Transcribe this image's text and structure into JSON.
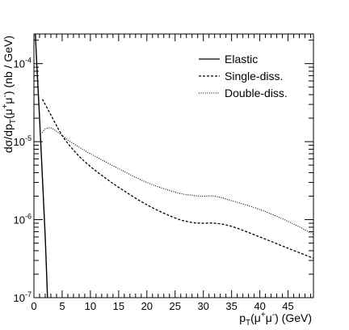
{
  "chart_data": {
    "type": "line",
    "title": "",
    "xlabel": "p_T(μ⁺μ⁻) (GeV)",
    "xlabel_parts": {
      "p": "p",
      "sub": "T",
      "arg": "(μ",
      "sup1": "+",
      "mid": "μ",
      "sup2": "-",
      "tail": ") (GeV)"
    },
    "ylabel_parts": {
      "pre": "dσ/dp",
      "sub": "T",
      "arg": "(μ",
      "sup1": "+",
      "mid": "μ",
      "sup2": "-",
      "tail": ") (nb / GeV)"
    },
    "x_ticks": [
      "0",
      "5",
      "10",
      "15",
      "20",
      "25",
      "30",
      "35",
      "40",
      "45"
    ],
    "x_tick_values": [
      0,
      5,
      10,
      15,
      20,
      25,
      30,
      35,
      40,
      45
    ],
    "y_tick_labels": [
      {
        "value": 1e-07,
        "base": "10",
        "exp": "-7"
      },
      {
        "value": 1e-06,
        "base": "10",
        "exp": "-6"
      },
      {
        "value": 1e-05,
        "base": "10",
        "exp": "-5"
      },
      {
        "value": 0.0001,
        "base": "10",
        "exp": "-4"
      }
    ],
    "xlim": [
      0,
      49.5
    ],
    "ylim": [
      1e-07,
      0.00024
    ],
    "y_scale": "log",
    "grid": false,
    "legend_position": "top-right",
    "series": [
      {
        "name": "Elastic",
        "style": "solid",
        "x": [
          0.25,
          0.5,
          1.0,
          1.5,
          2.0,
          2.4
        ],
        "y": [
          0.00024,
          0.0001,
          2e-05,
          3.5e-06,
          6e-07,
          1e-07
        ]
      },
      {
        "name": "Single-diss.",
        "style": "dashed",
        "x": [
          1.5,
          2.0,
          3.0,
          4.0,
          5.0,
          6.0,
          8.0,
          10.0,
          12.0,
          15.0,
          20.0,
          25.0,
          28.0,
          30.0,
          32.0,
          35.0,
          40.0,
          45.0,
          49.5
        ],
        "y": [
          3.5e-05,
          3e-05,
          2.2e-05,
          1.6e-05,
          1.2e-05,
          9.5e-06,
          6.5e-06,
          4.8e-06,
          3.7e-06,
          2.6e-06,
          1.55e-06,
          1.05e-06,
          9.2e-07,
          9e-07,
          9e-07,
          8.2e-07,
          6e-07,
          4.3e-07,
          3.2e-07
        ]
      },
      {
        "name": "Double-diss.",
        "style": "dotted",
        "x": [
          1.5,
          2.0,
          3.0,
          4.0,
          5.0,
          6.0,
          8.0,
          10.0,
          15.0,
          20.0,
          25.0,
          28.0,
          30.0,
          32.0,
          35.0,
          40.0,
          45.0,
          49.5
        ],
        "y": [
          1.3e-05,
          1.45e-05,
          1.5e-05,
          1.35e-05,
          1.2e-05,
          1.05e-05,
          8.5e-06,
          7e-06,
          4.5e-06,
          3e-06,
          2.25e-06,
          2.05e-06,
          2e-06,
          2e-06,
          1.75e-06,
          1.35e-06,
          9.5e-07,
          6.5e-07
        ]
      }
    ]
  }
}
